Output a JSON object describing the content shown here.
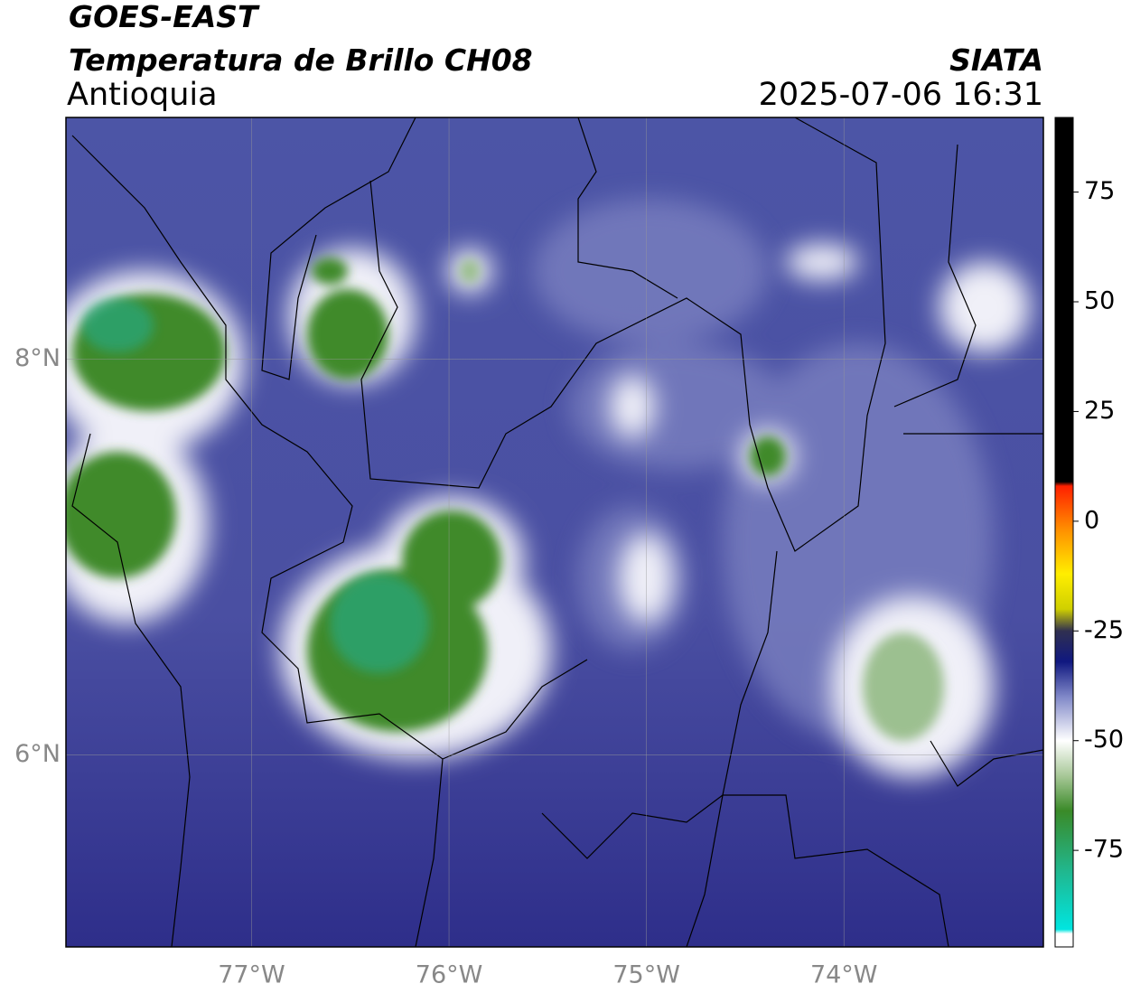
{
  "header": {
    "title": "GOES-EAST",
    "subtitle": "Temperatura de Brillo CH08",
    "region": "Antioquia",
    "source": "SIATA",
    "datetime": "2025-07-06 16:31"
  },
  "map": {
    "xlim": [
      -77.94,
      -72.99
    ],
    "ylim": [
      5.03,
      9.22
    ],
    "xticks": [
      {
        "value": -77,
        "label": "77°W"
      },
      {
        "value": -76,
        "label": "76°W"
      },
      {
        "value": -75,
        "label": "75°W"
      },
      {
        "value": -74,
        "label": "74°W"
      }
    ],
    "yticks": [
      {
        "value": 6,
        "label": "6°N"
      },
      {
        "value": 8,
        "label": "8°N"
      }
    ],
    "grid": true
  },
  "colorbar": {
    "lim": [
      -97,
      92
    ],
    "ticks": [
      75,
      50,
      25,
      0,
      -25,
      -50,
      -75
    ],
    "stops": [
      {
        "value": -97,
        "color": "#ffffff"
      },
      {
        "value": -94,
        "color": "#ffffff"
      },
      {
        "value": -93,
        "color": "#00e5e0"
      },
      {
        "value": -80,
        "color": "#20b890"
      },
      {
        "value": -66,
        "color": "#3a8a28"
      },
      {
        "value": -58,
        "color": "#a8c898"
      },
      {
        "value": -50,
        "color": "#ffffff"
      },
      {
        "value": -40,
        "color": "#8088c8"
      },
      {
        "value": -32,
        "color": "#101880"
      },
      {
        "value": -25,
        "color": "#303050"
      },
      {
        "value": -20,
        "color": "#d0d000"
      },
      {
        "value": -12,
        "color": "#ffee00"
      },
      {
        "value": -2,
        "color": "#ff9000"
      },
      {
        "value": 8,
        "color": "#ff2000"
      },
      {
        "value": 9,
        "color": "#000000"
      },
      {
        "value": 92,
        "color": "#000000"
      }
    ]
  }
}
